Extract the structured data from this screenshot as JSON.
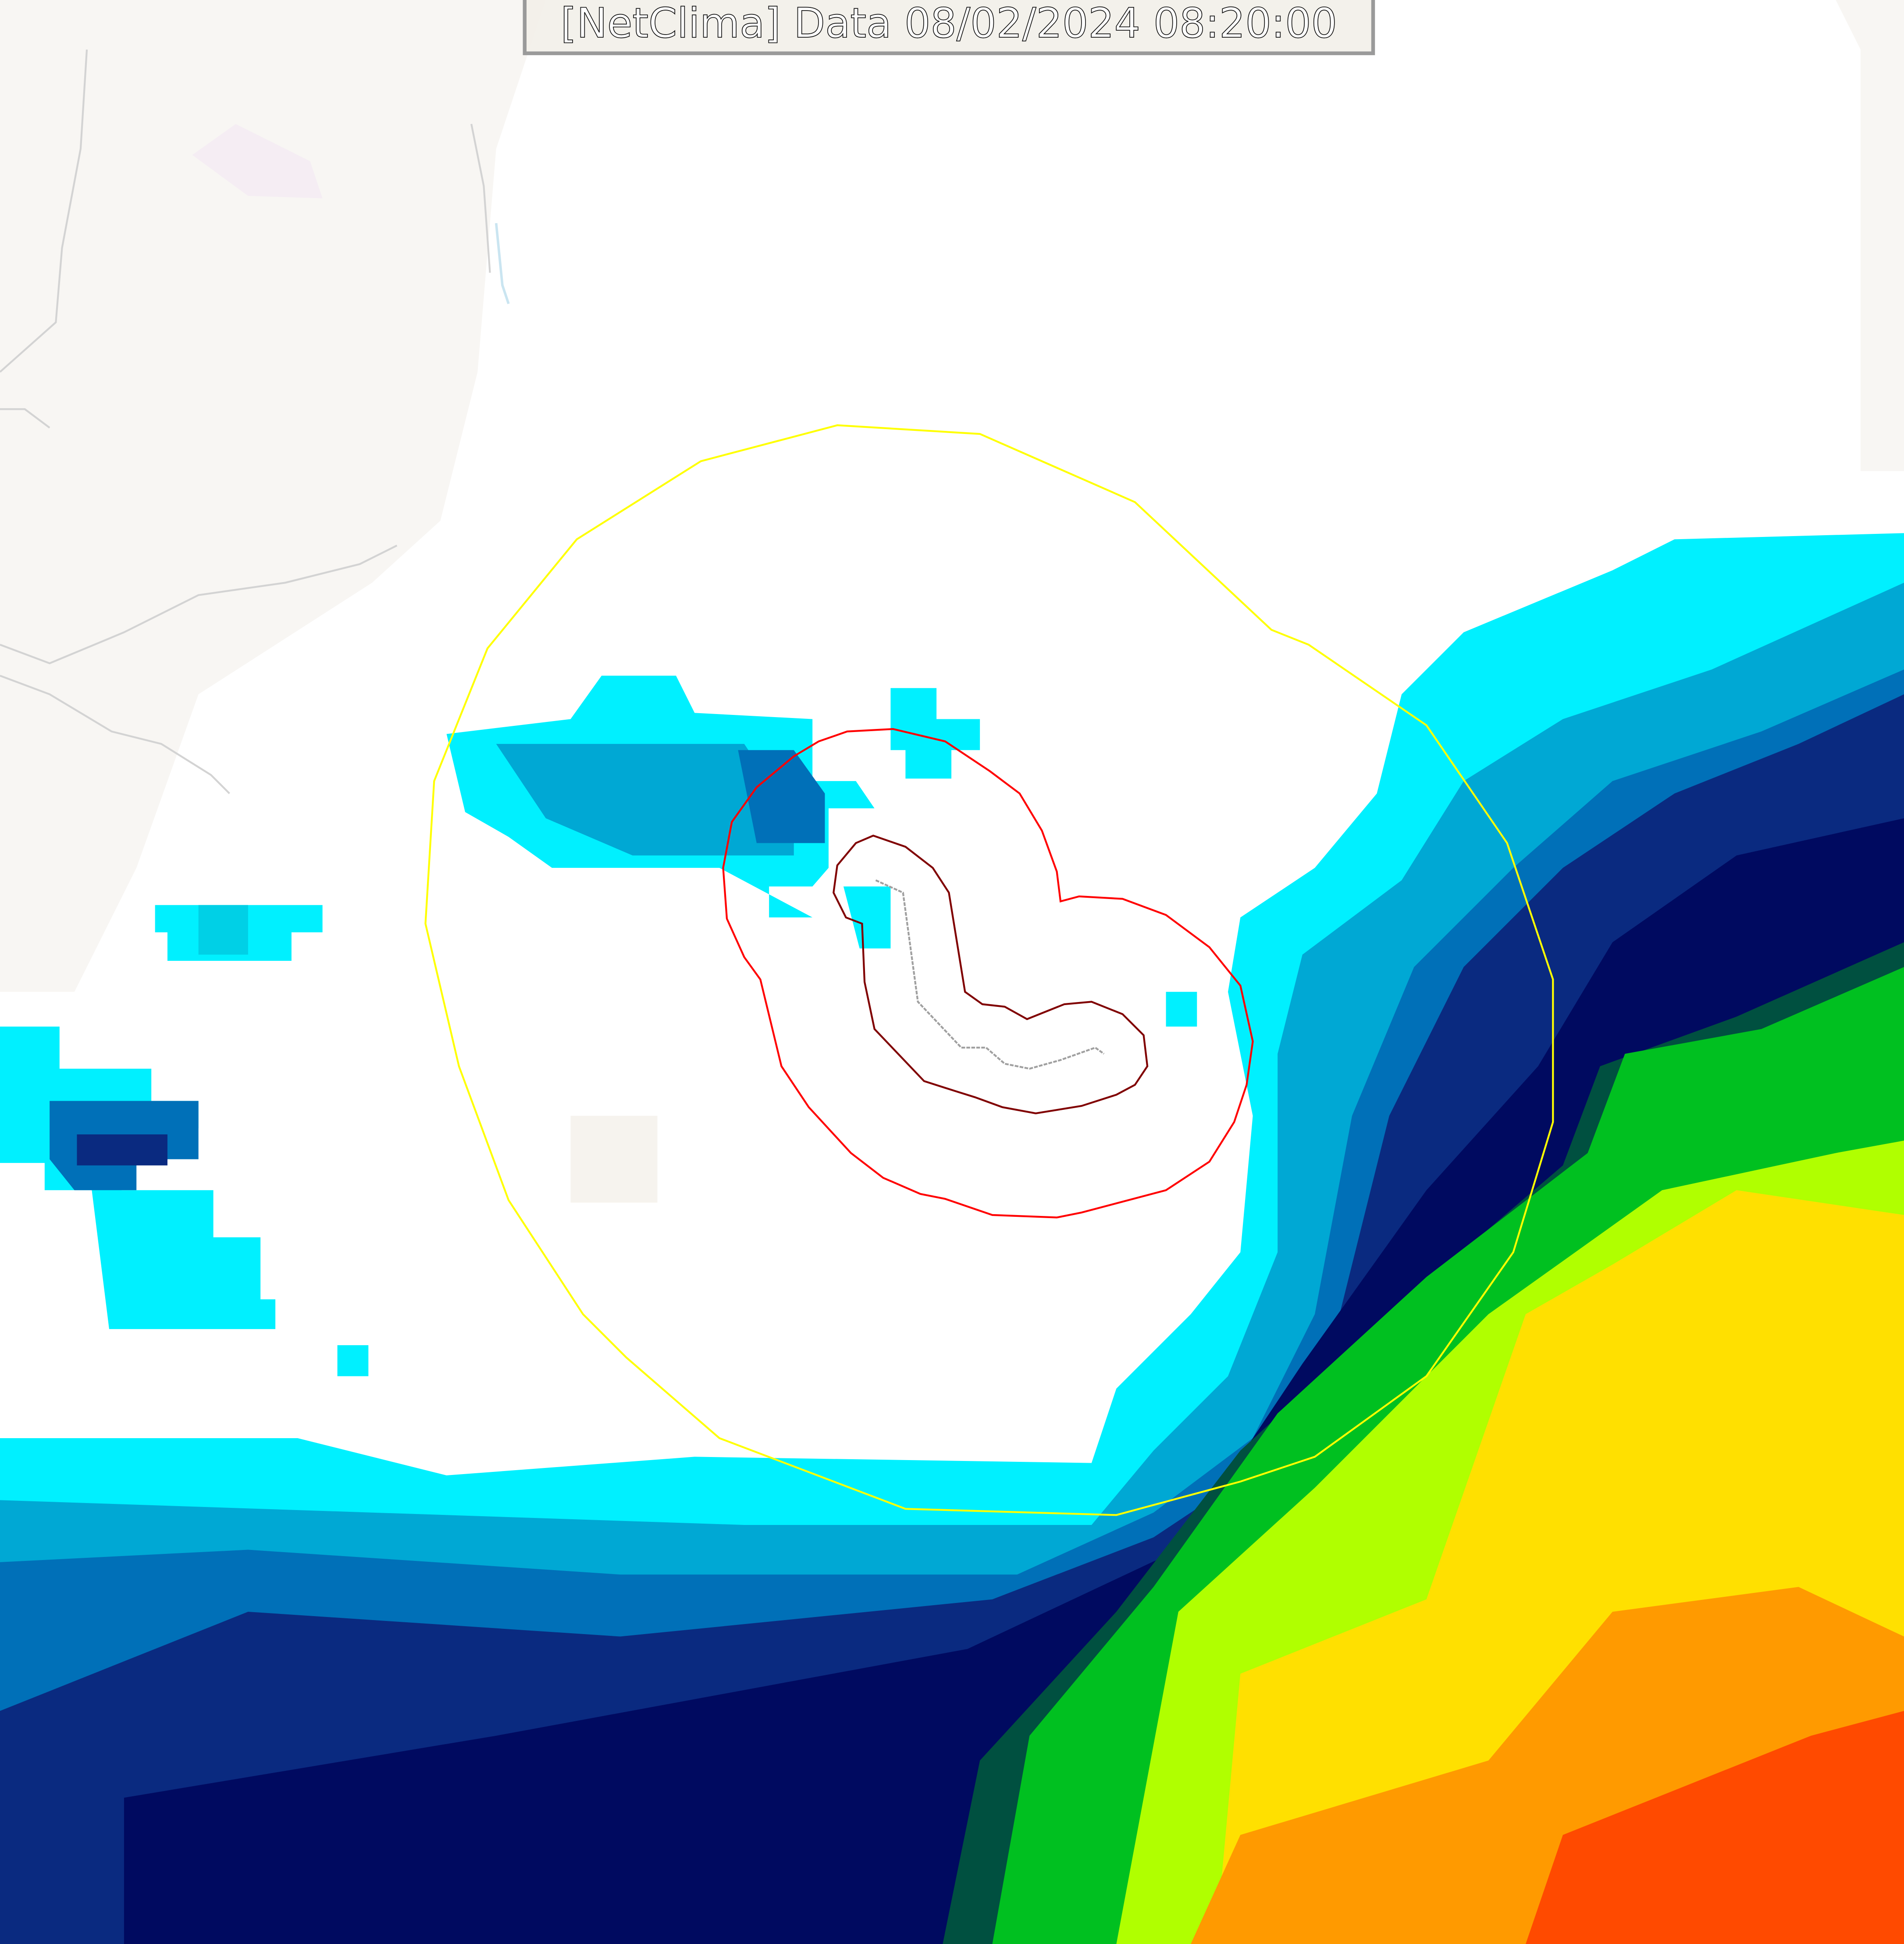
{
  "header": {
    "title": "[NetClima] Data 08/02/2024 08:20:00"
  },
  "map": {
    "basemap_colors": {
      "land": "#f2efe9",
      "river": "#9fd0e6",
      "road": "#b0b0b0"
    },
    "radar_palette": [
      "#00f0ff",
      "#00d0e6",
      "#00a8d4",
      "#0070b8",
      "#0a2a80",
      "#000a60",
      "#005040",
      "#00c020",
      "#00ff00",
      "#b0ff00",
      "#ffe000",
      "#ff9a00",
      "#ff4a00"
    ],
    "overlay_colors": {
      "outer_ring": "#ffff00",
      "middle_ring": "#ff0000",
      "inner_ring": "#800000",
      "track": "#a0a0a0"
    }
  }
}
